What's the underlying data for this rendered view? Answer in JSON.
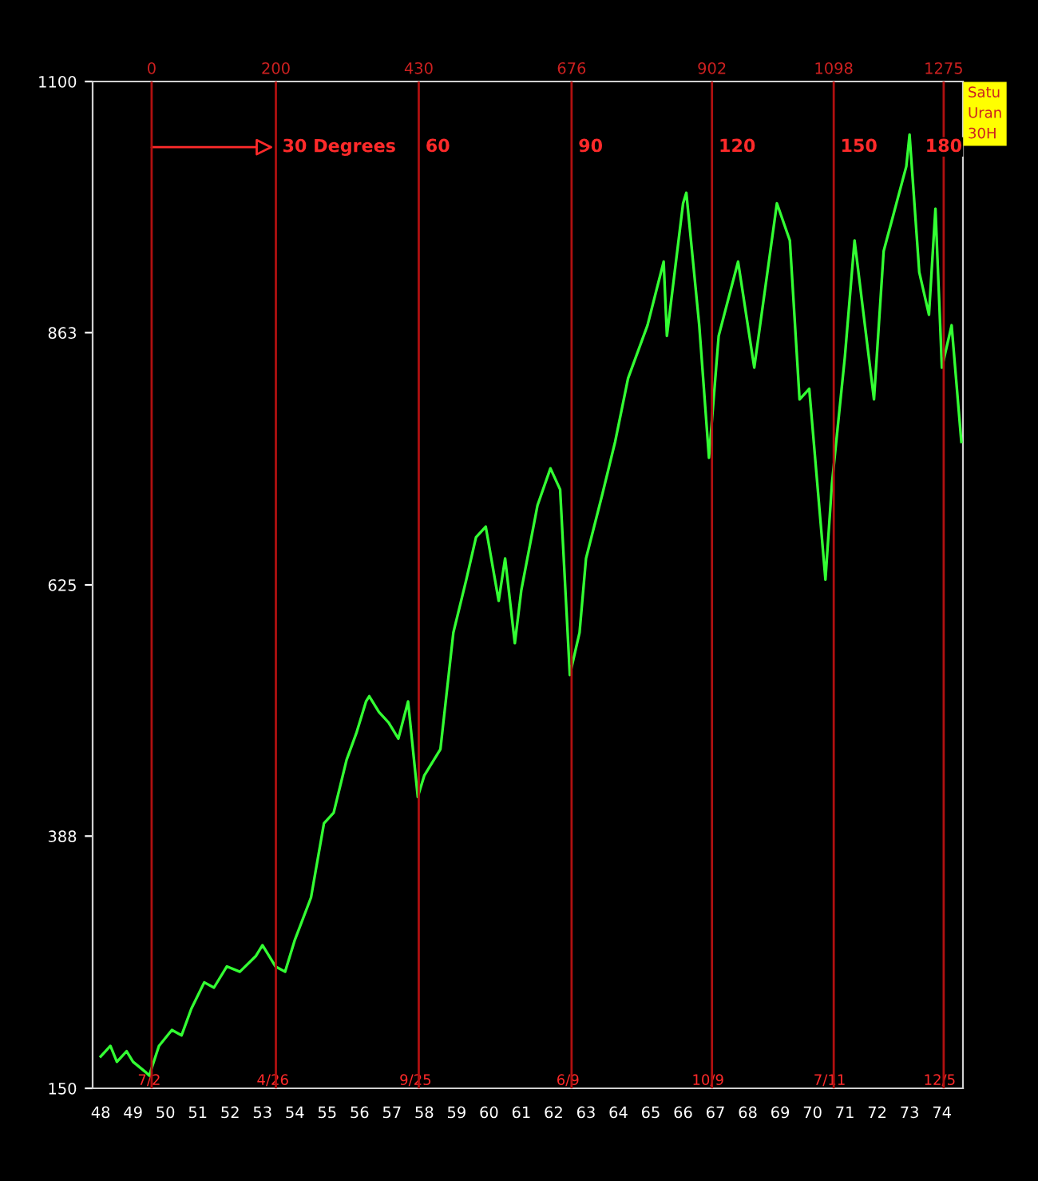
{
  "chart_data": {
    "type": "line",
    "x": [
      1948.0,
      1948.3,
      1948.5,
      1948.8,
      1949.0,
      1949.4,
      1949.5,
      1949.8,
      1950.2,
      1950.5,
      1950.8,
      1951.2,
      1951.5,
      1951.9,
      1952.3,
      1952.8,
      1953.0,
      1953.4,
      1953.7,
      1954.0,
      1954.5,
      1954.9,
      1955.2,
      1955.6,
      1955.9,
      1956.2,
      1956.3,
      1956.6,
      1956.9,
      1957.2,
      1957.5,
      1957.8,
      1958.0,
      1958.5,
      1958.9,
      1959.3,
      1959.6,
      1959.9,
      1960.3,
      1960.5,
      1960.8,
      1961.0,
      1961.5,
      1961.9,
      1962.2,
      1962.5,
      1962.8,
      1963.0,
      1963.5,
      1963.9,
      1964.3,
      1964.9,
      1965.4,
      1965.5,
      1966.0,
      1966.1,
      1966.5,
      1966.8,
      1967.1,
      1967.7,
      1968.2,
      1968.9,
      1969.3,
      1969.6,
      1969.9,
      1970.4,
      1970.6,
      1971.0,
      1971.3,
      1971.9,
      1972.2,
      1972.9,
      1973.0,
      1973.3,
      1973.6,
      1973.8,
      1974.0,
      1974.3,
      1974.6
    ],
    "series": [
      {
        "color": "#33ff33",
        "values": [
          180,
          190,
          175,
          185,
          175,
          165,
          162,
          190,
          205,
          200,
          225,
          250,
          245,
          265,
          260,
          275,
          285,
          265,
          260,
          290,
          330,
          400,
          410,
          460,
          485,
          515,
          520,
          505,
          495,
          480,
          515,
          425,
          445,
          470,
          580,
          630,
          670,
          680,
          610,
          650,
          570,
          620,
          700,
          735,
          715,
          540,
          580,
          650,
          710,
          760,
          820,
          870,
          930,
          860,
          985,
          995,
          870,
          745,
          860,
          930,
          830,
          985,
          950,
          800,
          810,
          630,
          720,
          840,
          950,
          800,
          940,
          1020,
          1050,
          920,
          880,
          980,
          830,
          870,
          760
        ]
      }
    ],
    "xlim": [
      1947.75,
      1974.65
    ],
    "xticks": [
      {
        "value": 1948,
        "label": "48"
      },
      {
        "value": 1949,
        "label": "49"
      },
      {
        "value": 1950,
        "label": "50"
      },
      {
        "value": 1951,
        "label": "51"
      },
      {
        "value": 1952,
        "label": "52"
      },
      {
        "value": 1953,
        "label": "53"
      },
      {
        "value": 1954,
        "label": "54"
      },
      {
        "value": 1955,
        "label": "55"
      },
      {
        "value": 1956,
        "label": "56"
      },
      {
        "value": 1957,
        "label": "57"
      },
      {
        "value": 1958,
        "label": "58"
      },
      {
        "value": 1959,
        "label": "59"
      },
      {
        "value": 1960,
        "label": "60"
      },
      {
        "value": 1961,
        "label": "61"
      },
      {
        "value": 1962,
        "label": "62"
      },
      {
        "value": 1963,
        "label": "63"
      },
      {
        "value": 1964,
        "label": "64"
      },
      {
        "value": 1965,
        "label": "65"
      },
      {
        "value": 1966,
        "label": "66"
      },
      {
        "value": 1967,
        "label": "67"
      },
      {
        "value": 1968,
        "label": "68"
      },
      {
        "value": 1969,
        "label": "69"
      },
      {
        "value": 1970,
        "label": "70"
      },
      {
        "value": 1971,
        "label": "71"
      },
      {
        "value": 1972,
        "label": "72"
      },
      {
        "value": 1973,
        "label": "73"
      },
      {
        "value": 1974,
        "label": "74"
      }
    ],
    "ylim": [
      150,
      1100
    ],
    "yticks": [
      150,
      388,
      625,
      863,
      1100
    ],
    "x2lim": [
      -95,
      1306
    ],
    "x2ticks": [
      0,
      200,
      430,
      676,
      902,
      1098,
      1275
    ],
    "ref_lines": [
      {
        "axis": "x2",
        "value": 0,
        "color": "#b01010"
      },
      {
        "axis": "x2",
        "value": 200,
        "color": "#b01010"
      },
      {
        "axis": "x2",
        "value": 430,
        "color": "#b01010"
      },
      {
        "axis": "x2",
        "value": 676,
        "color": "#b01010"
      },
      {
        "axis": "x2",
        "value": 902,
        "color": "#b01010"
      },
      {
        "axis": "x2",
        "value": 1098,
        "color": "#b01010"
      },
      {
        "axis": "x2",
        "value": 1275,
        "color": "#b01010"
      }
    ],
    "annotations": [
      {
        "text": "30 Degrees",
        "x": 1949.58,
        "y": 1038
      },
      "60",
      "90",
      "120",
      "150",
      "180",
      {
        "text": "7/2",
        "x": 1949.5,
        "y": 157
      },
      {
        "text": "4/26",
        "x": 1953.32,
        "y": 157
      },
      {
        "text": "9/25",
        "x": 1957.73,
        "y": 157
      },
      {
        "text": "6/9",
        "x": 1962.44,
        "y": 157
      },
      {
        "text": "10/9",
        "x": 1966.77,
        "y": 157
      },
      {
        "text": "7/11",
        "x": 1970.53,
        "y": 157
      },
      {
        "text": "12/5",
        "x": 1973.93,
        "y": 157
      },
      "Satu\nUran\n30H"
    ],
    "grid": false
  }
}
